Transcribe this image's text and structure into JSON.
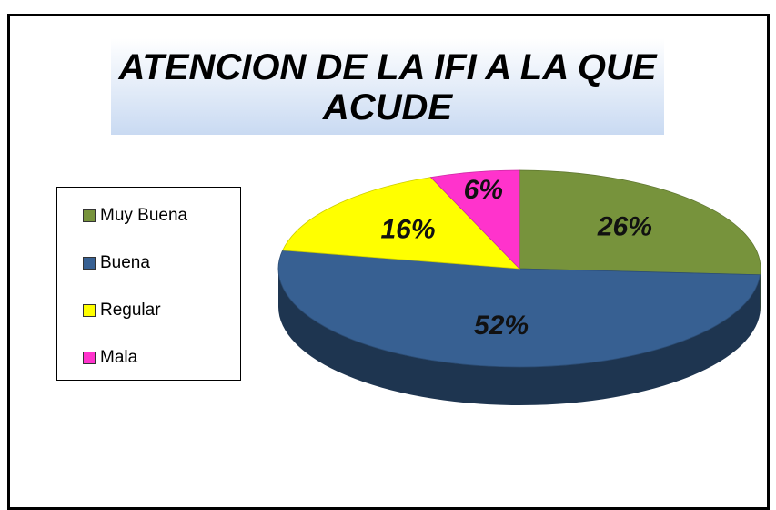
{
  "chart_data": {
    "type": "pie",
    "title": "ATENCION DE LA IFI A LA QUE ACUDE",
    "categories": [
      "Muy Buena",
      "Buena",
      "Regular",
      "Mala"
    ],
    "values": [
      26,
      52,
      16,
      6
    ],
    "value_labels": [
      "26%",
      "52%",
      "16%",
      "6%"
    ],
    "colors": [
      "#77933c",
      "#376092",
      "#ffff00",
      "#ff33cc"
    ],
    "legend": "left"
  }
}
